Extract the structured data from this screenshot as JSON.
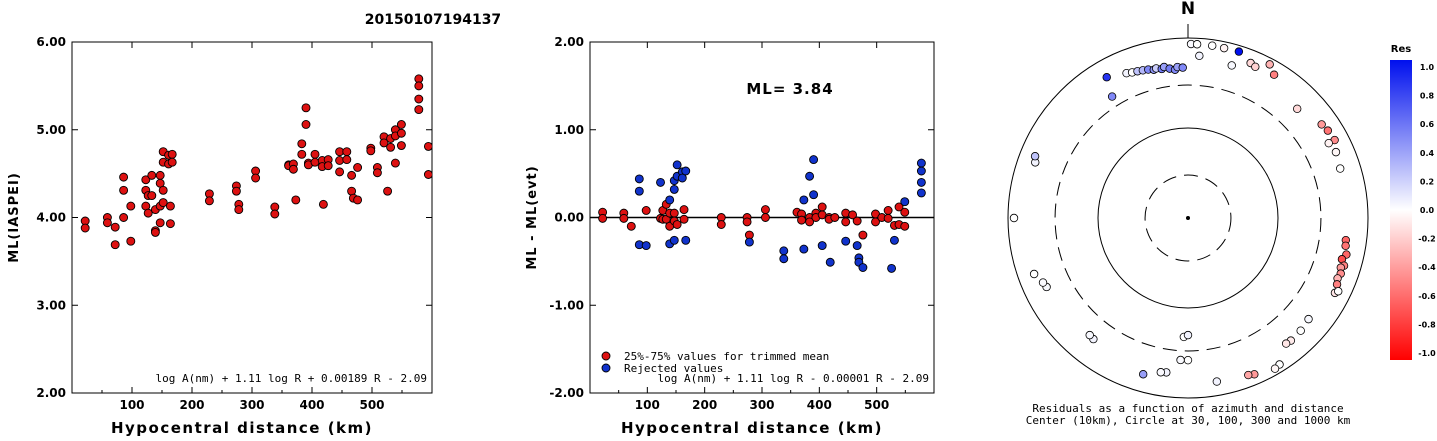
{
  "title": "20150107194137",
  "chart_data": [
    {
      "type": "scatter",
      "xlabel": "Hypocentral distance (km)",
      "ylabel": "ML(IASPEI)",
      "xlim": [
        0,
        600
      ],
      "ylim": [
        2.0,
        6.0
      ],
      "xticks": [
        100,
        200,
        300,
        400,
        500
      ],
      "yticks": [
        "2.00",
        "3.00",
        "4.00",
        "5.00",
        "6.00"
      ],
      "formula": "log A(nm) + 1.11 log R + 0.00189 R - 2.09",
      "color": "#dd1111",
      "points": [
        [
          22,
          3.96
        ],
        [
          22,
          3.88
        ],
        [
          59,
          4.0
        ],
        [
          59,
          3.94
        ],
        [
          72,
          3.89
        ],
        [
          72,
          3.69
        ],
        [
          86,
          4.46
        ],
        [
          86,
          4.31
        ],
        [
          86,
          4.0
        ],
        [
          98,
          4.13
        ],
        [
          98,
          3.73
        ],
        [
          123,
          4.43
        ],
        [
          123,
          4.31
        ],
        [
          123,
          4.13
        ],
        [
          127,
          4.25
        ],
        [
          127,
          4.05
        ],
        [
          133,
          4.48
        ],
        [
          133,
          4.25
        ],
        [
          139,
          4.09
        ],
        [
          139,
          3.85
        ],
        [
          139,
          3.83
        ],
        [
          147,
          4.48
        ],
        [
          147,
          4.39
        ],
        [
          147,
          4.13
        ],
        [
          147,
          3.94
        ],
        [
          152,
          4.75
        ],
        [
          152,
          4.63
        ],
        [
          152,
          4.31
        ],
        [
          152,
          4.17
        ],
        [
          161,
          4.71
        ],
        [
          161,
          4.61
        ],
        [
          164,
          4.13
        ],
        [
          164,
          3.93
        ],
        [
          167,
          4.72
        ],
        [
          167,
          4.63
        ],
        [
          229,
          4.27
        ],
        [
          229,
          4.19
        ],
        [
          274,
          4.36
        ],
        [
          274,
          4.3
        ],
        [
          278,
          4.15
        ],
        [
          278,
          4.09
        ],
        [
          306,
          4.53
        ],
        [
          306,
          4.45
        ],
        [
          338,
          4.12
        ],
        [
          338,
          4.04
        ],
        [
          361,
          4.6
        ],
        [
          361,
          4.59
        ],
        [
          369,
          4.61
        ],
        [
          369,
          4.55
        ],
        [
          373,
          4.2
        ],
        [
          383,
          4.84
        ],
        [
          383,
          4.72
        ],
        [
          390,
          5.25
        ],
        [
          390,
          5.06
        ],
        [
          394,
          4.62
        ],
        [
          394,
          4.6
        ],
        [
          405,
          4.72
        ],
        [
          405,
          4.63
        ],
        [
          417,
          4.65
        ],
        [
          417,
          4.58
        ],
        [
          419,
          4.15
        ],
        [
          427,
          4.66
        ],
        [
          427,
          4.59
        ],
        [
          446,
          4.75
        ],
        [
          446,
          4.65
        ],
        [
          446,
          4.52
        ],
        [
          458,
          4.75
        ],
        [
          458,
          4.66
        ],
        [
          466,
          4.48
        ],
        [
          466,
          4.3
        ],
        [
          469,
          4.22
        ],
        [
          476,
          4.57
        ],
        [
          476,
          4.2
        ],
        [
          498,
          4.79
        ],
        [
          498,
          4.76
        ],
        [
          509,
          4.57
        ],
        [
          509,
          4.51
        ],
        [
          520,
          4.92
        ],
        [
          520,
          4.85
        ],
        [
          526,
          4.3
        ],
        [
          531,
          4.9
        ],
        [
          531,
          4.8
        ],
        [
          539,
          5.0
        ],
        [
          539,
          4.93
        ],
        [
          539,
          4.62
        ],
        [
          549,
          5.06
        ],
        [
          549,
          4.96
        ],
        [
          549,
          4.82
        ],
        [
          578,
          5.58
        ],
        [
          578,
          5.5
        ],
        [
          578,
          5.35
        ],
        [
          578,
          5.23
        ],
        [
          594,
          4.81
        ],
        [
          594,
          4.49
        ]
      ]
    },
    {
      "type": "scatter",
      "xlabel": "Hypocentral distance (km)",
      "ylabel": "ML - ML(evt)",
      "xlim": [
        0,
        600
      ],
      "ylim": [
        -2.0,
        2.0
      ],
      "xticks": [
        100,
        200,
        300,
        400,
        500
      ],
      "yticks": [
        "-2.00",
        "-1.00",
        "0.00",
        "1.00",
        "2.00"
      ],
      "annotation": "ML= 3.84",
      "formula": "log A(nm) + 1.11 log R - 0.00001 R - 2.09",
      "legend": {
        "placement": "bottom-left",
        "entries": [
          {
            "label": "25%-75% values for trimmed mean",
            "color": "#dd1111"
          },
          {
            "label": "Rejected values",
            "color": "#1133cc"
          }
        ]
      },
      "trimmed_points": [
        [
          22,
          0.06
        ],
        [
          22,
          -0.01
        ],
        [
          59,
          0.05
        ],
        [
          59,
          -0.01
        ],
        [
          72,
          -0.1
        ],
        [
          98,
          0.08
        ],
        [
          123,
          -0.01
        ],
        [
          127,
          0.08
        ],
        [
          127,
          -0.02
        ],
        [
          133,
          0.15
        ],
        [
          133,
          -0.02
        ],
        [
          139,
          0.05
        ],
        [
          139,
          -0.1
        ],
        [
          147,
          0.05
        ],
        [
          147,
          -0.04
        ],
        [
          152,
          -0.08
        ],
        [
          164,
          0.09
        ],
        [
          164,
          -0.02
        ],
        [
          229,
          0.0
        ],
        [
          229,
          -0.08
        ],
        [
          274,
          0.0
        ],
        [
          274,
          -0.05
        ],
        [
          278,
          -0.2
        ],
        [
          306,
          0.09
        ],
        [
          306,
          0.0
        ],
        [
          361,
          0.06
        ],
        [
          369,
          0.04
        ],
        [
          369,
          -0.03
        ],
        [
          383,
          0.0
        ],
        [
          383,
          -0.05
        ],
        [
          394,
          0.05
        ],
        [
          394,
          0.0
        ],
        [
          405,
          0.12
        ],
        [
          405,
          0.03
        ],
        [
          417,
          0.0
        ],
        [
          417,
          -0.02
        ],
        [
          427,
          0.0
        ],
        [
          446,
          0.05
        ],
        [
          446,
          -0.05
        ],
        [
          458,
          0.03
        ],
        [
          466,
          -0.04
        ],
        [
          476,
          -0.2
        ],
        [
          498,
          0.04
        ],
        [
          498,
          -0.05
        ],
        [
          509,
          0.0
        ],
        [
          520,
          0.08
        ],
        [
          520,
          -0.01
        ],
        [
          531,
          -0.09
        ],
        [
          539,
          0.12
        ],
        [
          539,
          -0.08
        ],
        [
          549,
          0.06
        ],
        [
          549,
          -0.1
        ]
      ],
      "rejected_points": [
        [
          86,
          0.44
        ],
        [
          86,
          0.3
        ],
        [
          86,
          -0.31
        ],
        [
          98,
          -0.32
        ],
        [
          123,
          0.4
        ],
        [
          139,
          0.2
        ],
        [
          139,
          -0.3
        ],
        [
          147,
          0.42
        ],
        [
          147,
          0.32
        ],
        [
          147,
          -0.26
        ],
        [
          152,
          0.6
        ],
        [
          152,
          0.47
        ],
        [
          161,
          0.52
        ],
        [
          161,
          0.45
        ],
        [
          167,
          0.53
        ],
        [
          167,
          -0.26
        ],
        [
          278,
          -0.28
        ],
        [
          338,
          -0.38
        ],
        [
          338,
          -0.47
        ],
        [
          373,
          -0.36
        ],
        [
          373,
          0.2
        ],
        [
          383,
          0.47
        ],
        [
          390,
          0.66
        ],
        [
          390,
          0.26
        ],
        [
          405,
          -0.32
        ],
        [
          419,
          -0.51
        ],
        [
          446,
          -0.27
        ],
        [
          466,
          -0.32
        ],
        [
          469,
          -0.46
        ],
        [
          469,
          -0.51
        ],
        [
          476,
          -0.57
        ],
        [
          526,
          -0.58
        ],
        [
          531,
          -0.26
        ],
        [
          549,
          0.18
        ],
        [
          578,
          0.62
        ],
        [
          578,
          0.53
        ],
        [
          578,
          0.4
        ],
        [
          578,
          0.28
        ]
      ]
    },
    {
      "type": "polar-scatter",
      "north_label": "N",
      "caption_line1": "Residuals as a function of azimuth and distance",
      "caption_line2": "Center (10km), Circle at 30, 100, 300 and 1000 km",
      "colorbar": {
        "title": "Res",
        "labels": [
          "1.0",
          "0.8",
          "0.6",
          "0.4",
          "0.2",
          "0.0",
          "-0.2",
          "-0.4",
          "-0.6",
          "-0.8",
          "-1.0"
        ]
      },
      "points": [
        [
          8,
          860,
          0.0
        ],
        [
          12,
          850,
          -0.05
        ],
        [
          4,
          640,
          0.05
        ],
        [
          16,
          580,
          0.03
        ],
        [
          22,
          720,
          -0.15
        ],
        [
          24,
          690,
          -0.18
        ],
        [
          28,
          900,
          -0.3
        ],
        [
          31,
          720,
          -0.5
        ],
        [
          45,
          520,
          -0.15
        ],
        [
          55,
          650,
          -0.4
        ],
        [
          58,
          680,
          -0.55
        ],
        [
          62,
          700,
          -0.45
        ],
        [
          62,
          590,
          -0.05
        ],
        [
          66,
          630,
          -0.03
        ],
        [
          72,
          600,
          0.0
        ],
        [
          98,
          590,
          -0.6
        ],
        [
          100,
          600,
          -0.55
        ],
        [
          103,
          640,
          -0.6
        ],
        [
          105,
          590,
          -0.7
        ],
        [
          107,
          650,
          -0.5
        ],
        [
          108,
          610,
          -0.4
        ],
        [
          110,
          640,
          -0.45
        ],
        [
          112,
          620,
          -0.3
        ],
        [
          114,
          650,
          -0.5
        ],
        [
          117,
          680,
          -0.1
        ],
        [
          116,
          720,
          0.0
        ],
        [
          130,
          560,
          0.03
        ],
        [
          135,
          590,
          0.0
        ],
        [
          140,
          600,
          -0.08
        ],
        [
          142,
          590,
          -0.1
        ],
        [
          148,
          830,
          0.0
        ],
        [
          150,
          860,
          -0.03
        ],
        [
          157,
          770,
          -0.4
        ],
        [
          159,
          740,
          -0.35
        ],
        [
          170,
          700,
          0.05
        ],
        [
          188,
          540,
          0.05
        ],
        [
          190,
          550,
          0.02
        ],
        [
          182,
          210,
          0.0
        ],
        [
          180,
          200,
          0.05
        ],
        [
          180,
          380,
          0.0
        ],
        [
          183,
          380,
          0.02
        ],
        [
          196,
          640,
          0.4
        ],
        [
          218,
          510,
          0.05
        ],
        [
          220,
          500,
          0.03
        ],
        [
          244,
          560,
          0.03
        ],
        [
          246,
          580,
          0.02
        ],
        [
          250,
          660,
          0.0
        ],
        [
          270,
          1000,
          0.0
        ],
        [
          290,
          640,
          0.05
        ],
        [
          292,
          680,
          0.25
        ],
        [
          328,
          390,
          0.5
        ],
        [
          330,
          640,
          0.85
        ],
        [
          337,
          560,
          0.05
        ],
        [
          339,
          540,
          0.0
        ],
        [
          341,
          530,
          0.25
        ],
        [
          343,
          520,
          0.3
        ],
        [
          345,
          510,
          0.5
        ],
        [
          347,
          490,
          0.45
        ],
        [
          348,
          500,
          0.2
        ],
        [
          350,
          480,
          0.55
        ],
        [
          351,
          500,
          0.4
        ],
        [
          353,
          470,
          0.55
        ],
        [
          355,
          450,
          0.5
        ],
        [
          356,
          480,
          0.4
        ],
        [
          358,
          470,
          0.5
        ],
        [
          1,
          940,
          0.02
        ],
        [
          3,
          880,
          0.0
        ],
        [
          17,
          960,
          1.0
        ]
      ]
    }
  ]
}
